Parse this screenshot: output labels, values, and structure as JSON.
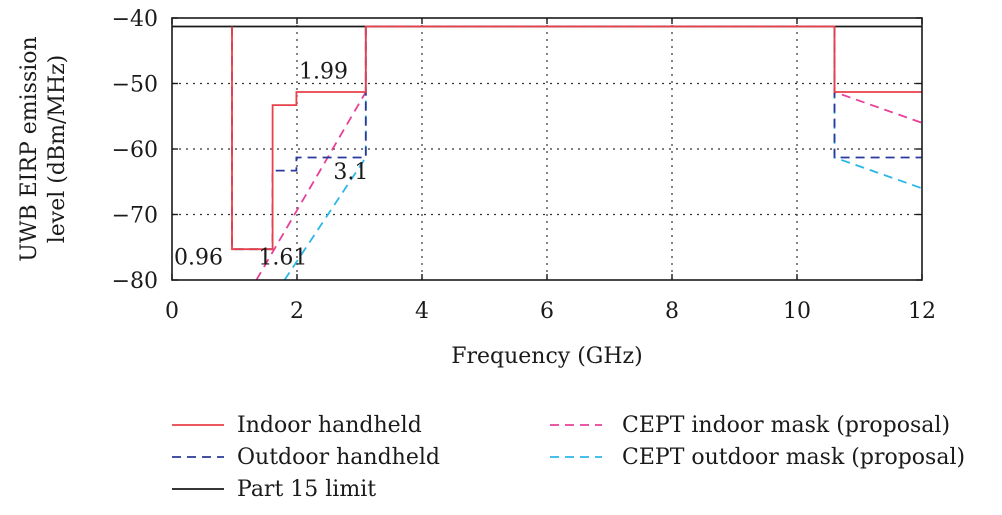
{
  "chart_data": {
    "type": "line",
    "xlabel": "Frequency (GHz)",
    "ylabel": "UWB EIRP emission level (dBm/MHz)",
    "ylabel_lines": [
      "UWB EIRP emission",
      "level (dBm/MHz)"
    ],
    "xlim": [
      0,
      12
    ],
    "ylim": [
      -80,
      -40
    ],
    "xticks": [
      0,
      2,
      4,
      6,
      8,
      10,
      12
    ],
    "yticks": [
      -80,
      -70,
      -60,
      -50,
      -40
    ],
    "ytick_labels": [
      "−80",
      "−70",
      "−60",
      "−50",
      "−40"
    ],
    "grid": true,
    "legend_position": "below",
    "series": [
      {
        "name": "Indoor handheld",
        "color": "#e8404a",
        "dash": "solid",
        "x": [
          0.96,
          0.96,
          1.61,
          1.61,
          1.99,
          1.99,
          3.1,
          3.1,
          10.6,
          10.6,
          12
        ],
        "y": [
          -41.3,
          -75.3,
          -75.3,
          -53.3,
          -53.3,
          -51.3,
          -51.3,
          -41.3,
          -41.3,
          -51.3,
          -51.3
        ]
      },
      {
        "name": "Outdoor handheld",
        "color": "#2a3a9a",
        "dash": "dashed",
        "x": [
          0.96,
          0.96,
          1.61,
          1.61,
          1.99,
          1.99,
          3.1,
          3.1,
          10.6,
          10.6,
          12
        ],
        "y": [
          -41.3,
          -75.3,
          -75.3,
          -63.3,
          -63.3,
          -61.3,
          -61.3,
          -41.3,
          -41.3,
          -61.3,
          -61.3
        ]
      },
      {
        "name": "Part 15 limit",
        "color": "#1a1a1a",
        "dash": "solid",
        "x": [
          0,
          12
        ],
        "y": [
          -41.3,
          -41.3
        ]
      },
      {
        "name": "CEPT indoor mask (proposal)",
        "color": "#e8409a",
        "dash": "dashed",
        "x": [
          1.35,
          3.1,
          3.1,
          10.6,
          10.6,
          12
        ],
        "y": [
          -80,
          -51.3,
          -41.3,
          -41.3,
          -51.3,
          -56
        ]
      },
      {
        "name": "CEPT outdoor mask (proposal)",
        "color": "#2ab8e8",
        "dash": "dashed",
        "x": [
          1.8,
          3.1,
          3.1,
          10.6,
          10.6,
          12
        ],
        "y": [
          -80,
          -61.3,
          -41.3,
          -41.3,
          -61.3,
          -66
        ]
      }
    ],
    "annotations": [
      {
        "text": "0.96",
        "x": 0.0,
        "y": -77.6
      },
      {
        "text": "1.61",
        "x": 1.35,
        "y": -77.6
      },
      {
        "text": "1.99",
        "x": 2.0,
        "y": -49.2
      },
      {
        "text": "3.1",
        "x": 2.55,
        "y": -64.6
      }
    ],
    "legend": {
      "items": [
        {
          "name": "Indoor handheld",
          "color": "#e8404a",
          "dash": "solid"
        },
        {
          "name": "Outdoor handheld",
          "color": "#2a3a9a",
          "dash": "dashed"
        },
        {
          "name": "Part 15 limit",
          "color": "#1a1a1a",
          "dash": "solid"
        },
        {
          "name": "CEPT indoor mask (proposal)",
          "color": "#e8409a",
          "dash": "dashed"
        },
        {
          "name": "CEPT outdoor mask (proposal)",
          "color": "#2ab8e8",
          "dash": "dashed"
        }
      ]
    }
  }
}
